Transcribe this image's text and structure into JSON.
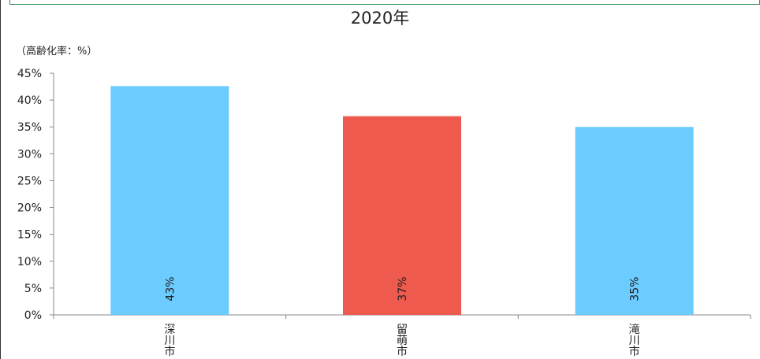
{
  "chart_data": {
    "type": "bar",
    "title": "2020年",
    "unit_label": "（高齢化率：%）",
    "categories": [
      "深川市",
      "留萌市",
      "滝川市"
    ],
    "values": [
      42.6,
      37.0,
      35.0
    ],
    "value_labels": [
      "43%",
      "37%",
      "35%"
    ],
    "colors": [
      "#6ccbff",
      "#ef5a4e",
      "#6ccbff"
    ],
    "ylim": [
      0,
      45
    ],
    "yticks": [
      0,
      5,
      10,
      15,
      20,
      25,
      30,
      35,
      40,
      45
    ],
    "ytick_labels": [
      "0%",
      "5%",
      "10%",
      "15%",
      "20%",
      "25%",
      "30%",
      "35%",
      "40%",
      "45%"
    ],
    "grid": false,
    "legend": "none"
  }
}
